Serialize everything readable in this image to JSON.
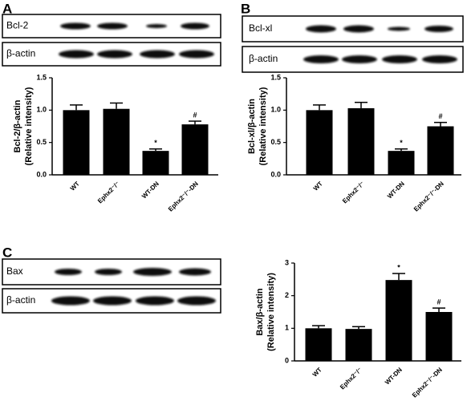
{
  "panels": [
    {
      "label": "A",
      "blots": [
        "Bcl-2",
        "β-actin"
      ]
    },
    {
      "label": "B",
      "blots": [
        "Bcl-xl",
        "β-actin"
      ]
    },
    {
      "label": "C",
      "blots": [
        "Bax",
        "β-actin"
      ]
    }
  ],
  "chart_data": [
    {
      "type": "bar",
      "y_label": [
        "Bcl-2/β-actin",
        "(Relative intensity)"
      ],
      "categories": [
        "WT",
        "Ephx2⁻/⁻",
        "WT-DN",
        "Ephx2⁻/⁻-DN"
      ],
      "values": [
        1.0,
        1.02,
        0.37,
        0.78
      ],
      "errors": [
        0.08,
        0.09,
        0.03,
        0.05
      ],
      "bar_labels": [
        null,
        null,
        "*",
        "#"
      ],
      "color": "#000000",
      "ylim": [
        0,
        1.5
      ],
      "yticks": [
        {
          "value": 0,
          "label": "0.0"
        },
        0.5,
        {
          "value": 1,
          "label": "1.0"
        },
        1.5
      ],
      "grid": false
    },
    {
      "type": "bar",
      "y_label": [
        "Bcl-xl/β-actin",
        "(Relative intensity)"
      ],
      "categories": [
        "WT",
        "Ephx2⁻/⁻",
        "WT-DN",
        "Ephx2⁻/⁻-DN"
      ],
      "values": [
        1.0,
        1.03,
        0.37,
        0.75
      ],
      "errors": [
        0.08,
        0.09,
        0.03,
        0.06
      ],
      "bar_labels": [
        null,
        null,
        "*",
        "#"
      ],
      "color": "#000000",
      "ylim": [
        0,
        1.5
      ],
      "yticks": [
        {
          "value": 0,
          "label": "0.0"
        },
        0.5,
        {
          "value": 1,
          "label": "1.0"
        },
        1.5
      ],
      "grid": false
    },
    {
      "type": "bar",
      "y_label": [
        "Bax/β-actin",
        "(Relative intensity)"
      ],
      "categories": [
        "WT",
        "Ephx2⁻/⁻",
        "WT-DN",
        "Ephx2⁻/⁻-DN"
      ],
      "values": [
        1.0,
        0.98,
        2.48,
        1.5
      ],
      "errors": [
        0.08,
        0.07,
        0.2,
        0.12
      ],
      "bar_labels": [
        null,
        null,
        "*",
        "#"
      ],
      "color": "#000000",
      "ylim": [
        0,
        3
      ],
      "yticks": [
        0,
        1,
        2,
        3
      ],
      "grid": false
    }
  ]
}
